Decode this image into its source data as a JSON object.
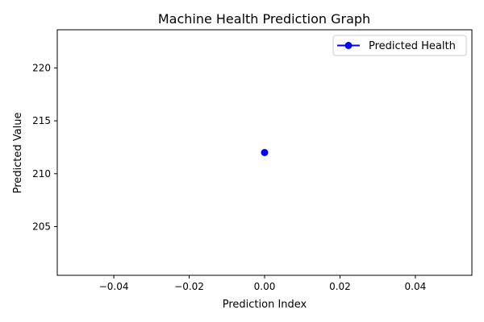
{
  "chart_data": {
    "type": "line",
    "title": "Machine Health Prediction Graph",
    "xlabel": "Prediction Index",
    "ylabel": "Predicted Value",
    "xlim": [
      -0.055,
      0.055
    ],
    "ylim": [
      200.4,
      223.6
    ],
    "xticks": [
      -0.04,
      -0.02,
      0.0,
      0.02,
      0.04
    ],
    "xtick_labels": [
      "−0.04",
      "−0.02",
      "0.00",
      "0.02",
      "0.04"
    ],
    "yticks": [
      205,
      210,
      215,
      220
    ],
    "ytick_labels": [
      "205",
      "210",
      "215",
      "220"
    ],
    "grid": false,
    "legend_placement": "top-right",
    "series": [
      {
        "name": "Predicted Health",
        "color": "#0000ff",
        "marker": "circle",
        "x": [
          0
        ],
        "y": [
          212
        ]
      }
    ]
  }
}
